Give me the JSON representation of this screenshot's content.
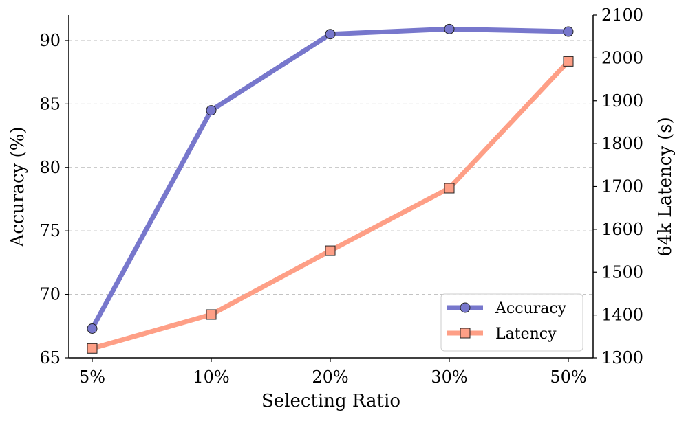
{
  "chart_data": {
    "type": "line",
    "categories": [
      "5%",
      "10%",
      "20%",
      "30%",
      "50%"
    ],
    "xlabel": "Selecting Ratio",
    "y_left": {
      "label": "Accuracy (%)",
      "ylim": [
        65,
        92
      ],
      "ticks": [
        65,
        70,
        75,
        80,
        85,
        90
      ],
      "tick_labels": [
        "65",
        "70",
        "75",
        "80",
        "85",
        "90"
      ],
      "color": "#5b5bb8"
    },
    "y_right": {
      "label": "64k Latency (s)",
      "ylim": [
        1300,
        2100
      ],
      "ticks": [
        1300,
        1400,
        1500,
        1600,
        1700,
        1800,
        1900,
        2000,
        2100
      ],
      "tick_labels": [
        "1300",
        "1400",
        "1500",
        "1600",
        "1700",
        "1800",
        "1900",
        "2000",
        "2100"
      ],
      "color": "#d9684a"
    },
    "series": [
      {
        "name": "Accuracy",
        "axis": "left",
        "values": [
          67.3,
          84.5,
          90.5,
          90.9,
          90.7
        ],
        "color": "#7777cc",
        "marker": "circle"
      },
      {
        "name": "Latency",
        "axis": "right",
        "values": [
          1322,
          1401,
          1550,
          1696,
          1992
        ],
        "color": "#fe9f86",
        "marker": "square"
      }
    ],
    "grid": "horizontal-dashed",
    "legend": {
      "placement": "bottom-right",
      "labels": [
        "Accuracy",
        "Latency"
      ]
    }
  }
}
